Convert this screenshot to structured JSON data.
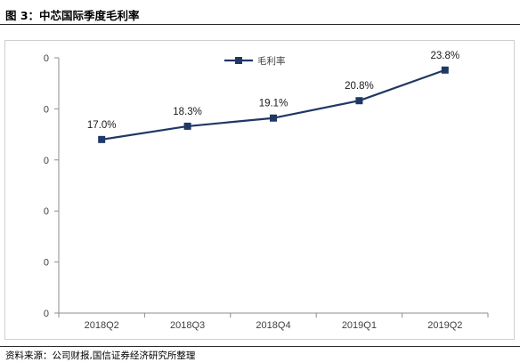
{
  "figure": {
    "title": "图 3：中芯国际季度毛利率",
    "source": "资料来源：公司财报,国信证券经济研究所整理"
  },
  "chart_data": {
    "type": "line",
    "categories": [
      "2018Q2",
      "2018Q3",
      "2018Q4",
      "2019Q1",
      "2019Q2"
    ],
    "series": [
      {
        "name": "毛利率",
        "values": [
          17.0,
          18.3,
          19.1,
          20.8,
          23.8
        ],
        "labels": [
          "17.0%",
          "18.3%",
          "19.1%",
          "20.8%",
          "23.8%"
        ],
        "color": "#1f3864"
      }
    ],
    "y_tick_labels": [
      "0",
      "0",
      "0",
      "0",
      "0",
      "0"
    ],
    "ylim": [
      0,
      25
    ],
    "grid": false,
    "legend": "top-center"
  }
}
